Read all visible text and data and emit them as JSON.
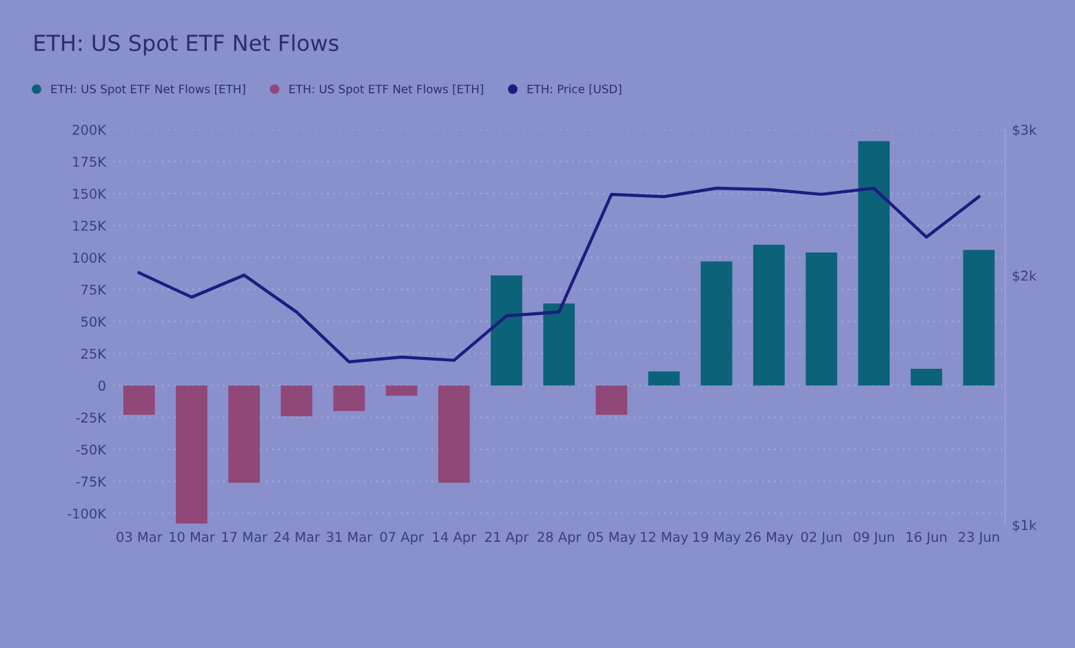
{
  "chart_data": {
    "type": "bar",
    "title": "ETH: US Spot ETF Net Flows",
    "categories": [
      "03 Mar",
      "10 Mar",
      "17 Mar",
      "24 Mar",
      "31 Mar",
      "07 Apr",
      "14 Apr",
      "21 Apr",
      "28 Apr",
      "05 May",
      "12 May",
      "19 May",
      "26 May",
      "02 Jun",
      "09 Jun",
      "16 Jun",
      "23 Jun"
    ],
    "series": [
      {
        "name": "ETH: US Spot ETF Net Flows [ETH]",
        "color": "#0b6279",
        "values": [
          null,
          null,
          null,
          null,
          null,
          null,
          null,
          86000,
          64000,
          null,
          11000,
          97000,
          110000,
          104000,
          191000,
          13000,
          106000
        ]
      },
      {
        "name": "ETH: US Spot ETF Net Flows [ETH]",
        "color": "#8f4878",
        "values": [
          -23000,
          -108000,
          -76000,
          -24000,
          -20000,
          -8000,
          -76000,
          null,
          null,
          -23000,
          null,
          null,
          null,
          null,
          null,
          null,
          null
        ]
      },
      {
        "name": "ETH: Price [USD]",
        "type": "line",
        "axis": "y2",
        "color": "#1c1c80",
        "values": [
          2015,
          1883,
          2002,
          1807,
          1573,
          1594,
          1580,
          1788,
          1807,
          2506,
          2490,
          2549,
          2539,
          2506,
          2549,
          2225,
          2490
        ]
      }
    ],
    "ylim": [
      -109000,
      200000
    ],
    "yticks": [
      {
        "value": -100000,
        "label": "-100K"
      },
      {
        "value": -75000,
        "label": "-75K"
      },
      {
        "value": -50000,
        "label": "-50K"
      },
      {
        "value": -25000,
        "label": "-25K"
      },
      0,
      {
        "value": 25000,
        "label": "25K"
      },
      {
        "value": 50000,
        "label": "50K"
      },
      {
        "value": 75000,
        "label": "75K"
      },
      {
        "value": 100000,
        "label": "100K"
      },
      {
        "value": 125000,
        "label": "125K"
      },
      {
        "value": 150000,
        "label": "150K"
      },
      {
        "value": 175000,
        "label": "175K"
      },
      {
        "value": 200000,
        "label": "200K"
      }
    ],
    "y2lim": [
      1000,
      3000
    ],
    "y2ticks": [
      {
        "value": 1000,
        "label": "$1k"
      },
      {
        "value": 2000,
        "label": "$2k"
      },
      {
        "value": 3000,
        "label": "$3k"
      }
    ],
    "log": "y2",
    "grid": "y",
    "legend": "top left",
    "marker": "none",
    "line_style": "solid"
  }
}
